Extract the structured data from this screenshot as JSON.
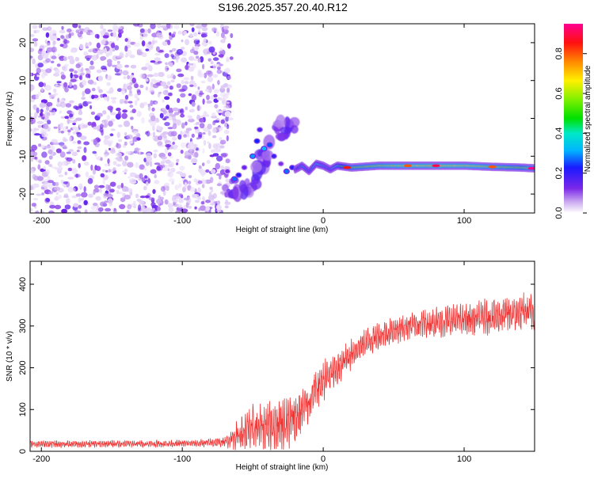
{
  "title": "S196.2025.357.20.40.R12",
  "chart_data": [
    {
      "type": "heatmap",
      "xlabel": "Height of straight line (km)",
      "ylabel": "Frequency (Hz)",
      "xlim": [
        -208,
        150
      ],
      "ylim": [
        -25,
        25
      ],
      "xticks": [
        -200,
        -100,
        0,
        100
      ],
      "xtick_labels": [
        "-200",
        "-100",
        "0",
        "100"
      ],
      "yticks": [
        -20,
        -10,
        0,
        10,
        20
      ],
      "ytick_labels": [
        "-20",
        "-10",
        "0",
        "10",
        "20"
      ],
      "colorbar": {
        "label": "Normalized spectral amplitude",
        "range": [
          0,
          0.95
        ],
        "ticks": [
          0,
          0.2,
          0.4,
          0.6,
          0.8
        ],
        "tick_labels": [
          "0.0",
          "0.2",
          "0.4",
          "0.6",
          "0.8"
        ],
        "colormap": "rainbow (white-violet-blue-cyan-green-yellow-red-magenta)"
      },
      "features": [
        {
          "name": "noise region",
          "x_range": [
            -208,
            -65
          ],
          "y_range": [
            -25,
            25
          ],
          "amplitude": "0.0-0.15"
        },
        {
          "name": "blob cluster",
          "x_range": [
            -70,
            -20
          ],
          "y_range": [
            -20,
            -1
          ],
          "amplitude": "0.1-0.4"
        },
        {
          "name": "ridge",
          "x_range": [
            -20,
            150
          ],
          "y_center": -13,
          "peak_amplitude": 0.95
        }
      ],
      "ridge_points": {
        "x": [
          -20,
          -15,
          -10,
          -5,
          0,
          5,
          10,
          20,
          40,
          60,
          80,
          100,
          120,
          140,
          150
        ],
        "y": [
          -13.5,
          -12.5,
          -14,
          -12,
          -12.5,
          -13.5,
          -12.5,
          -13,
          -12.5,
          -12.5,
          -12.5,
          -12.5,
          -12.8,
          -13,
          -13.2
        ],
        "amplitude": [
          0.2,
          0.3,
          0.25,
          0.35,
          0.3,
          0.25,
          0.4,
          0.55,
          0.6,
          0.65,
          0.7,
          0.65,
          0.6,
          0.55,
          0.6
        ]
      }
    },
    {
      "type": "line",
      "xlabel": "Height of straight line (km)",
      "ylabel": "SNR (10 * v/v)",
      "xlim": [
        -208,
        150
      ],
      "ylim": [
        0,
        455
      ],
      "xticks": [
        -200,
        -100,
        0,
        100
      ],
      "xtick_labels": [
        "-200",
        "-100",
        "0",
        "100"
      ],
      "yticks": [
        0,
        100,
        200,
        300,
        400
      ],
      "ytick_labels": [
        "0",
        "100",
        "200",
        "300",
        "400"
      ],
      "series": [
        {
          "name": "SNR",
          "color": "#ee3333",
          "x": [
            -208,
            -180,
            -150,
            -120,
            -90,
            -70,
            -60,
            -50,
            -40,
            -30,
            -20,
            -10,
            0,
            10,
            20,
            30,
            40,
            60,
            80,
            100,
            120,
            140,
            150
          ],
          "baseline": [
            18,
            17,
            18,
            18,
            19,
            22,
            40,
            55,
            60,
            65,
            75,
            120,
            170,
            195,
            235,
            260,
            278,
            300,
            310,
            315,
            322,
            330,
            335
          ],
          "noise_amplitude": [
            8,
            8,
            8,
            8,
            8,
            12,
            35,
            55,
            55,
            60,
            65,
            55,
            45,
            40,
            35,
            32,
            32,
            32,
            35,
            38,
            42,
            45,
            45
          ]
        }
      ]
    }
  ]
}
